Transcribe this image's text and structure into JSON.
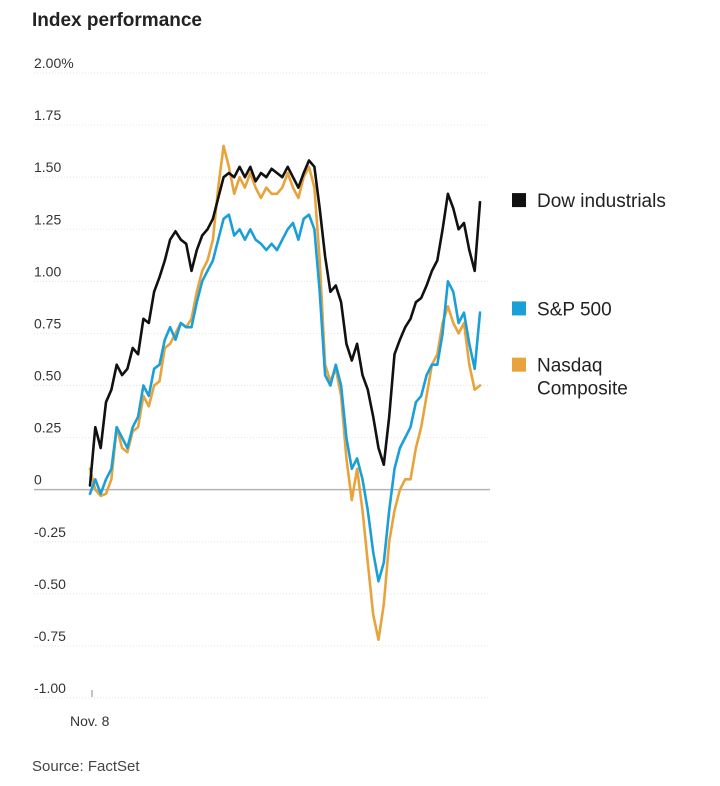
{
  "chart_data": {
    "type": "line",
    "title": "Index performance",
    "source": "Source: FactSet",
    "xlabel": "",
    "ylabel": "",
    "x_tick_label": "Nov. 8",
    "ylim": [
      -1.0,
      2.0
    ],
    "y_ticks": [
      2.0,
      1.75,
      1.5,
      1.25,
      1.0,
      0.75,
      0.5,
      0.25,
      0,
      -0.25,
      -0.5,
      -0.75,
      -1.0
    ],
    "y_tick_labels": [
      "2.00%",
      "1.75",
      "1.50",
      "1.25",
      "1.00",
      "0.75",
      "0.50",
      "0.25",
      "0",
      "-0.25",
      "-0.50",
      "-0.75",
      "-1.00"
    ],
    "legend_position": "right",
    "series": [
      {
        "name": "Dow industrials",
        "label_lines": [
          "Dow industrials"
        ],
        "color": "#111111",
        "values": [
          0.02,
          0.3,
          0.2,
          0.42,
          0.48,
          0.6,
          0.55,
          0.58,
          0.68,
          0.65,
          0.82,
          0.8,
          0.95,
          1.02,
          1.1,
          1.2,
          1.24,
          1.2,
          1.18,
          1.05,
          1.15,
          1.22,
          1.25,
          1.3,
          1.4,
          1.5,
          1.52,
          1.5,
          1.55,
          1.5,
          1.55,
          1.48,
          1.52,
          1.5,
          1.54,
          1.52,
          1.5,
          1.55,
          1.5,
          1.45,
          1.52,
          1.58,
          1.55,
          1.35,
          1.12,
          0.95,
          0.98,
          0.9,
          0.7,
          0.62,
          0.7,
          0.55,
          0.48,
          0.35,
          0.2,
          0.12,
          0.35,
          0.65,
          0.72,
          0.78,
          0.82,
          0.9,
          0.92,
          0.98,
          1.05,
          1.1,
          1.25,
          1.42,
          1.35,
          1.25,
          1.28,
          1.15,
          1.05,
          1.38
        ]
      },
      {
        "name": "S&P 500",
        "label_lines": [
          "S&P 500"
        ],
        "color": "#1a9fd8",
        "values": [
          -0.02,
          0.05,
          -0.02,
          0.05,
          0.1,
          0.3,
          0.25,
          0.2,
          0.3,
          0.35,
          0.5,
          0.45,
          0.58,
          0.6,
          0.72,
          0.78,
          0.72,
          0.8,
          0.78,
          0.78,
          0.9,
          1.0,
          1.05,
          1.1,
          1.2,
          1.3,
          1.32,
          1.22,
          1.25,
          1.2,
          1.25,
          1.2,
          1.18,
          1.15,
          1.18,
          1.15,
          1.2,
          1.25,
          1.28,
          1.2,
          1.3,
          1.32,
          1.25,
          0.95,
          0.55,
          0.5,
          0.6,
          0.5,
          0.25,
          0.1,
          0.15,
          0.05,
          -0.1,
          -0.3,
          -0.44,
          -0.35,
          -0.1,
          0.1,
          0.2,
          0.25,
          0.3,
          0.42,
          0.45,
          0.55,
          0.6,
          0.6,
          0.75,
          1.0,
          0.95,
          0.8,
          0.85,
          0.7,
          0.58,
          0.85
        ]
      },
      {
        "name": "Nasdaq Composite",
        "label_lines": [
          "Nasdaq",
          "Composite"
        ],
        "color": "#e8a33c",
        "values": [
          0.1,
          0.0,
          -0.03,
          -0.02,
          0.05,
          0.3,
          0.2,
          0.18,
          0.28,
          0.3,
          0.45,
          0.4,
          0.5,
          0.52,
          0.68,
          0.7,
          0.75,
          0.8,
          0.78,
          0.82,
          0.95,
          1.05,
          1.1,
          1.2,
          1.45,
          1.65,
          1.55,
          1.42,
          1.5,
          1.45,
          1.52,
          1.45,
          1.4,
          1.45,
          1.42,
          1.42,
          1.45,
          1.52,
          1.45,
          1.4,
          1.5,
          1.55,
          1.45,
          1.1,
          0.6,
          0.52,
          0.58,
          0.45,
          0.15,
          -0.05,
          0.1,
          -0.1,
          -0.35,
          -0.6,
          -0.72,
          -0.55,
          -0.25,
          -0.1,
          0.0,
          0.05,
          0.05,
          0.2,
          0.3,
          0.45,
          0.6,
          0.65,
          0.8,
          0.88,
          0.8,
          0.75,
          0.8,
          0.6,
          0.48,
          0.5
        ]
      }
    ]
  }
}
